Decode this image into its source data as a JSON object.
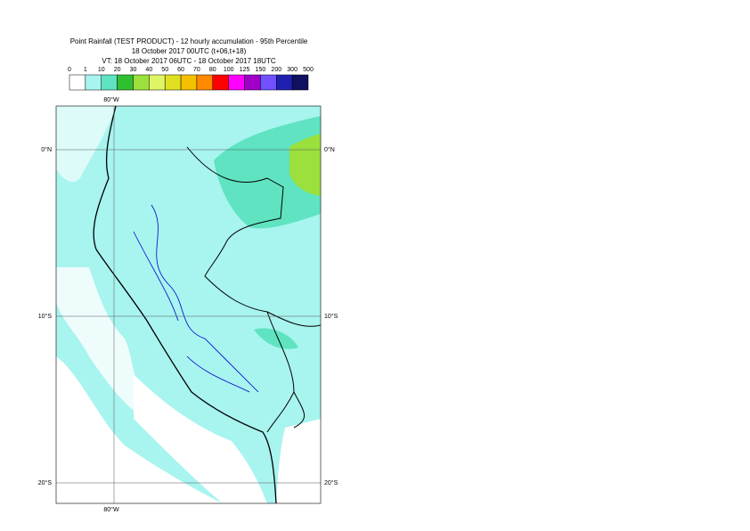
{
  "title": {
    "line1": "Point Rainfall (TEST PRODUCT) - 12 hourly accumulation - 95th Percentile",
    "line2": "18 October 2017 00UTC (t+06,t+18)",
    "line3": "VT: 18 October 2017 06UTC - 18 October 2017 18UTC"
  },
  "legend": {
    "labels": [
      "0",
      "1",
      "10",
      "20",
      "30",
      "40",
      "50",
      "60",
      "70",
      "80",
      "100",
      "125",
      "150",
      "200",
      "300",
      "500"
    ]
  },
  "map": {
    "lon_top": "80°W",
    "lon_bottom": "80°W",
    "lat_left": [
      "0°N",
      "10°S",
      "20°S"
    ],
    "lat_right": [
      "0°N",
      "10°S",
      "20°S"
    ]
  }
}
